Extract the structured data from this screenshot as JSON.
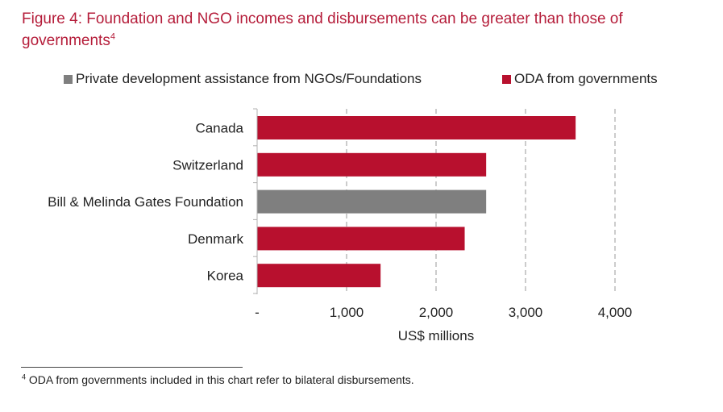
{
  "title": {
    "text": "Figure 4: Foundation and NGO incomes and disbursements can be greater than those of governments",
    "footnote_ref": "4"
  },
  "legend": [
    {
      "label": "Private development assistance from NGOs/Foundations",
      "color": "#7f7f7f"
    },
    {
      "label": "ODA from governments",
      "color": "#b8102e"
    }
  ],
  "chart_data": {
    "type": "bar",
    "orientation": "horizontal",
    "categories": [
      "Canada",
      "Switzerland",
      "Bill & Melinda Gates Foundation",
      "Denmark",
      "Korea"
    ],
    "values": [
      3560,
      2560,
      2560,
      2320,
      1380
    ],
    "series_of_category": [
      "ODA from governments",
      "ODA from governments",
      "Private development assistance from NGOs/Foundations",
      "ODA from governments",
      "ODA from governments"
    ],
    "xlabel": "US$ millions",
    "xlim": [
      0,
      4000
    ],
    "xticks": [
      0,
      1000,
      2000,
      3000,
      4000
    ],
    "xtick_labels": [
      "-",
      "1,000",
      "2,000",
      "3,000",
      "4,000"
    ],
    "grid": "vertical dashed",
    "legend_position": "top"
  },
  "footnote": {
    "marker": "4",
    "text": "ODA from governments included in this chart refer to bilateral disbursements."
  }
}
